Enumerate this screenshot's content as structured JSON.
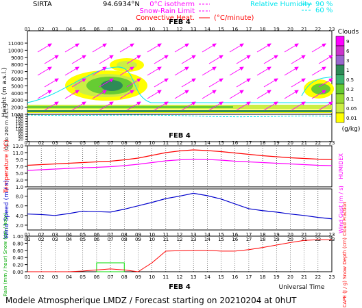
{
  "header": {
    "site": "SIRTA",
    "coord": "94.6934",
    "coord_unit": "°N",
    "legend_items": [
      {
        "name": "0°C isotherm",
        "color": "#ff00ff"
      },
      {
        "name": "Snow-Rain Limit",
        "color": "#ff00ff"
      },
      {
        "name": "Convective Heat.",
        "color": "#ff0000"
      }
    ],
    "convective_unit": "(°C/minute)",
    "rh_label": "Relative Humidity",
    "rh_levels": [
      "90 %",
      "60 %"
    ],
    "rh_color": "#00e5ee"
  },
  "footer": {
    "title": "Modele Atmospherique LMDZ / Forecast starting on 20210204 at 0hUT",
    "time_label": "Universal Time"
  },
  "chart_data": [
    {
      "type": "heatmap",
      "name": "clouds",
      "date": "FEB 4",
      "hours": [
        "01",
        "02",
        "03",
        "04",
        "05",
        "06",
        "07",
        "08",
        "09",
        "10",
        "11",
        "12",
        "13",
        "14",
        "15",
        "16",
        "17",
        "18",
        "19",
        "20",
        "21",
        "22",
        "23"
      ],
      "ylabel": "Height (m a.s.l.)",
      "yticks_km": [
        1000,
        2000,
        3000,
        4000,
        5000,
        6000,
        7000,
        8000,
        9000,
        10000,
        11000
      ],
      "yticks_low_label": "Up to 200 m a.s.l.",
      "yticks_low": [
        20,
        40,
        60,
        80,
        100,
        120,
        140,
        160,
        180,
        200
      ],
      "colorbar": {
        "title": "Clouds",
        "unit": "(g/kg)",
        "levels": [
          "9",
          "6",
          "3",
          "1",
          "0.5",
          "0.2",
          "0.1",
          "0.05",
          "0.01"
        ],
        "colors": [
          "#ff00ff",
          "#cc33cc",
          "#9966cc",
          "#2e8b57",
          "#3cb371",
          "#66cc33",
          "#99dd33",
          "#ccee44",
          "#ffff00"
        ]
      }
    },
    {
      "type": "line",
      "name": "temperature",
      "x": [
        "01",
        "02",
        "03",
        "04",
        "05",
        "06",
        "07",
        "08",
        "09",
        "10",
        "11",
        "12",
        "13",
        "14",
        "15",
        "16",
        "17",
        "18",
        "19",
        "20",
        "21",
        "22",
        "23"
      ],
      "ylabel_left": "Temperature (°C)",
      "ylabel_right": "HUMIDEX",
      "yticks": [
        "1.0",
        "3.0",
        "5.0",
        "7.0",
        "9.0",
        "11.0",
        "13.0"
      ],
      "ylim": [
        1,
        13
      ],
      "series": [
        {
          "name": "Temperature",
          "color": "#ff0000",
          "values": [
            7.3,
            7.5,
            7.7,
            7.9,
            8.1,
            8.3,
            8.5,
            8.9,
            9.4,
            10.2,
            11.0,
            11.5,
            11.8,
            11.6,
            11.3,
            10.9,
            10.5,
            10.1,
            9.8,
            9.5,
            9.3,
            9.1,
            9.0
          ]
        },
        {
          "name": "HUMIDEX",
          "color": "#ff00ff",
          "values": [
            5.8,
            6.0,
            6.2,
            6.4,
            6.6,
            6.7,
            6.9,
            7.2,
            7.6,
            8.1,
            8.6,
            8.9,
            9.1,
            9.0,
            8.8,
            8.5,
            8.3,
            8.1,
            7.9,
            7.7,
            7.5,
            7.3,
            7.2
          ]
        }
      ]
    },
    {
      "type": "line",
      "name": "wind",
      "x": [
        "01",
        "02",
        "03",
        "04",
        "05",
        "06",
        "07",
        "08",
        "09",
        "10",
        "11",
        "12",
        "13",
        "14",
        "15",
        "16",
        "17",
        "18",
        "19",
        "20",
        "21",
        "22",
        "23"
      ],
      "ylabel_left": "Wind Speed (m / s)",
      "ylabel_right": "Wind Gust (m / s)",
      "yticks": [
        "2.0",
        "4.0",
        "6.0",
        "8.0"
      ],
      "ylim": [
        1,
        9.5
      ],
      "series": [
        {
          "name": "Wind Speed",
          "color": "#0000cc",
          "values": [
            4.3,
            4.2,
            4.0,
            4.4,
            4.9,
            4.8,
            4.7,
            5.3,
            6.0,
            6.7,
            7.5,
            8.0,
            8.6,
            8.1,
            7.4,
            6.4,
            5.4,
            5.0,
            4.7,
            4.3,
            4.0,
            3.6,
            3.3
          ]
        }
      ]
    },
    {
      "type": "line",
      "name": "precipitation",
      "x": [
        "01",
        "02",
        "03",
        "04",
        "05",
        "06",
        "07",
        "08",
        "09",
        "10",
        "11",
        "12",
        "13",
        "14",
        "15",
        "16",
        "17",
        "18",
        "19",
        "20",
        "21",
        "22",
        "23"
      ],
      "ylabel_left": "Rain (mm / hour) Snow (cm / hour)",
      "ylabel_right": "CAPE (J / g) Snow Depth (cm) Cloud Fraction",
      "yticks": [
        "0.00",
        "0.20",
        "0.40",
        "0.60",
        "0.80",
        "1.00"
      ],
      "ylim": [
        0,
        1
      ],
      "series": [
        {
          "name": "Cloud Fraction",
          "color": "#ff0000",
          "values": [
            0.0,
            0.0,
            0.0,
            0.0,
            0.02,
            0.05,
            0.08,
            0.05,
            0.0,
            0.25,
            0.58,
            0.59,
            0.6,
            0.6,
            0.58,
            0.58,
            0.62,
            0.68,
            0.75,
            0.82,
            0.88,
            0.9,
            0.9
          ]
        },
        {
          "name": "Rain",
          "color": "#00dd00",
          "values": [
            0,
            0,
            0,
            0,
            0,
            0.25,
            0.25,
            0.25,
            0,
            0,
            0,
            0,
            0,
            0,
            0,
            0,
            0,
            0,
            0,
            0,
            0,
            0,
            0
          ]
        }
      ]
    }
  ]
}
